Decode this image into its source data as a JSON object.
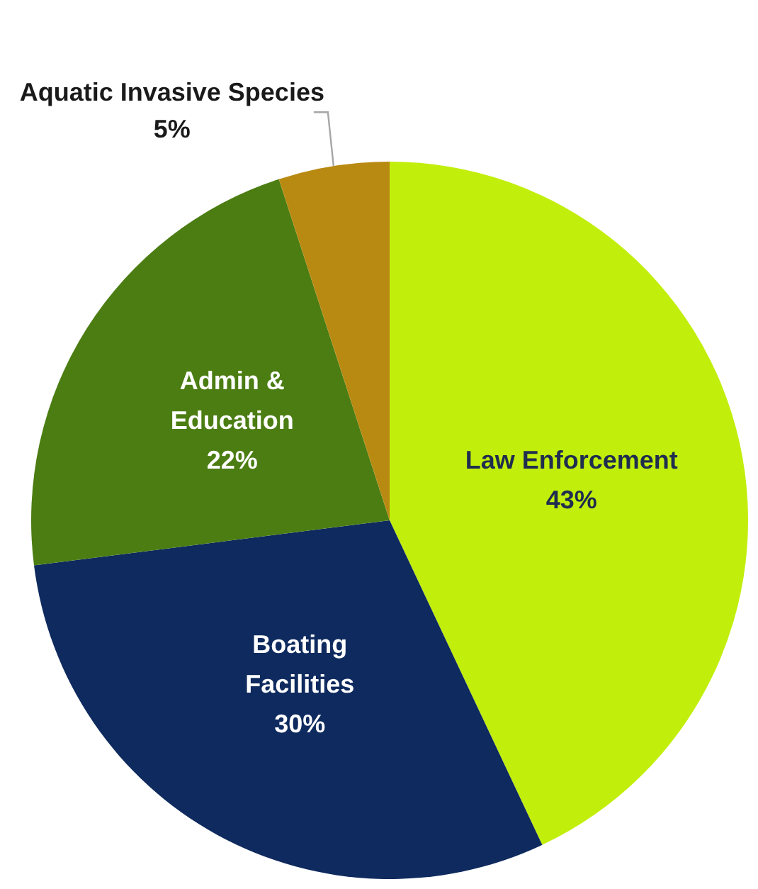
{
  "chart_data": {
    "type": "pie",
    "categories": [
      "Law Enforcement",
      "Boating Facilities",
      "Admin & Education",
      "Aquatic Invasive Species"
    ],
    "values": [
      43,
      30,
      22,
      5
    ],
    "value_labels": [
      "43%",
      "30%",
      "22%",
      "5%"
    ],
    "colors": [
      "#c2ee0c",
      "#0e2a5e",
      "#4b7d12",
      "#b98a12"
    ],
    "legend": false
  }
}
